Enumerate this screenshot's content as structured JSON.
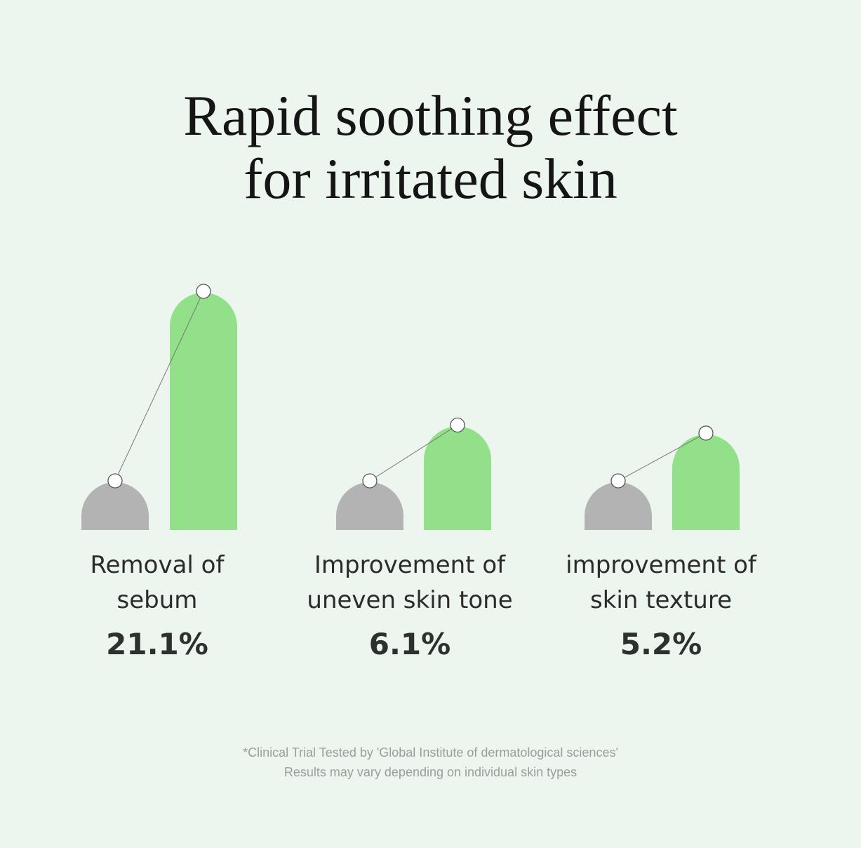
{
  "title": {
    "line1": "Rapid soothing effect",
    "line2": "for irritated skin"
  },
  "colors": {
    "background": "#edf5ef",
    "before_bar": "#b3b3b3",
    "after_bar": "#93e08a",
    "marker_fill": "#ffffff",
    "marker_stroke": "#555555",
    "connector": "#777777"
  },
  "chart_data": {
    "type": "bar",
    "title": "Rapid soothing effect for irritated skin",
    "categories": [
      [
        "Removal of",
        "sebum"
      ],
      [
        "Improvement of",
        "uneven skin tone"
      ],
      [
        "improvement of",
        "skin texture"
      ]
    ],
    "values": [
      "21.1%",
      "6.1%",
      "5.2%"
    ],
    "improvement_percent": [
      21.1,
      6.1,
      5.2
    ],
    "xlabel": "",
    "ylabel": "",
    "grid": false,
    "legend": false
  },
  "footnote": {
    "line1": "*Clinical Trial Tested by 'Global Institute of dermatological sciences'",
    "line2": "Results may vary depending on individual skin types"
  }
}
